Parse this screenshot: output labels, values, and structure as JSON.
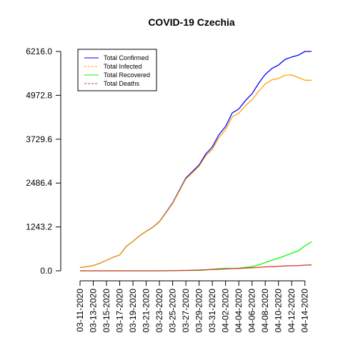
{
  "chart_data": {
    "type": "line",
    "title": "COVID-19 Czechia",
    "xlabel": "",
    "ylabel": "",
    "ylim": [
      0,
      6216.0
    ],
    "yticks": [
      "0.0",
      "1243.2",
      "2486.4",
      "3729.6",
      "4972.8",
      "6216.0"
    ],
    "ytick_values": [
      0,
      1243.2,
      2486.4,
      3729.6,
      4972.8,
      6216.0
    ],
    "x": [
      "03-11-2020",
      "03-12-2020",
      "03-13-2020",
      "03-14-2020",
      "03-15-2020",
      "03-16-2020",
      "03-17-2020",
      "03-18-2020",
      "03-19-2020",
      "03-20-2020",
      "03-21-2020",
      "03-22-2020",
      "03-23-2020",
      "03-24-2020",
      "03-25-2020",
      "03-26-2020",
      "03-27-2020",
      "03-28-2020",
      "03-29-2020",
      "03-30-2020",
      "03-31-2020",
      "04-01-2020",
      "04-02-2020",
      "04-03-2020",
      "04-04-2020",
      "04-05-2020",
      "04-06-2020",
      "04-07-2020",
      "04-08-2020",
      "04-09-2020",
      "04-10-2020",
      "04-11-2020",
      "04-12-2020",
      "04-13-2020",
      "04-14-2020",
      "04-15-2020"
    ],
    "xticks": [
      "03-11-2020",
      "03-13-2020",
      "03-15-2020",
      "03-17-2020",
      "03-19-2020",
      "03-21-2020",
      "03-23-2020",
      "03-25-2020",
      "03-27-2020",
      "03-29-2020",
      "03-31-2020",
      "04-02-2020",
      "04-04-2020",
      "04-06-2020",
      "04-08-2020",
      "04-10-2020",
      "04-12-2020",
      "04-14-2020"
    ],
    "legend_position": "top-left",
    "grid": false,
    "series": [
      {
        "name": "Total Confirmed",
        "color": "#0000ff",
        "dash": "solid",
        "values": [
          94,
          116,
          150,
          214,
          298,
          383,
          450,
          694,
          833,
          995,
          1120,
          1236,
          1394,
          1654,
          1925,
          2279,
          2631,
          2817,
          3001,
          3308,
          3508,
          3858,
          4091,
          4472,
          4587,
          4822,
          5017,
          5312,
          5569,
          5732,
          5831,
          5991,
          6059,
          6111,
          6216,
          6216
        ]
      },
      {
        "name": "Total Infected",
        "color": "#ffa500",
        "dash": "dashed",
        "values": [
          94,
          116,
          150,
          214,
          298,
          383,
          450,
          691,
          830,
          990,
          1115,
          1228,
          1383,
          1640,
          1905,
          2254,
          2601,
          2783,
          2962,
          3256,
          3443,
          3777,
          3996,
          4362,
          4468,
          4679,
          4847,
          5085,
          5297,
          5412,
          5450,
          5539,
          5550,
          5477,
          5400,
          5400
        ]
      },
      {
        "name": "Total Recovered",
        "color": "#00ff00",
        "dash": "solid",
        "values": [
          0,
          0,
          0,
          0,
          0,
          0,
          0,
          0,
          0,
          0,
          0,
          0,
          3,
          3,
          4,
          10,
          11,
          11,
          11,
          25,
          45,
          61,
          71,
          71,
          75,
          96,
          121,
          170,
          233,
          301,
          360,
          427,
          501,
          564,
          710,
          821
        ]
      },
      {
        "name": "Total Deaths",
        "color": "#dd3333",
        "dash": "dashed",
        "values": [
          0,
          0,
          0,
          0,
          0,
          0,
          0,
          0,
          0,
          0,
          0,
          0,
          0,
          1,
          9,
          9,
          11,
          16,
          23,
          31,
          39,
          44,
          53,
          62,
          67,
          78,
          88,
          99,
          112,
          119,
          129,
          138,
          143,
          147,
          161,
          169
        ]
      }
    ]
  }
}
